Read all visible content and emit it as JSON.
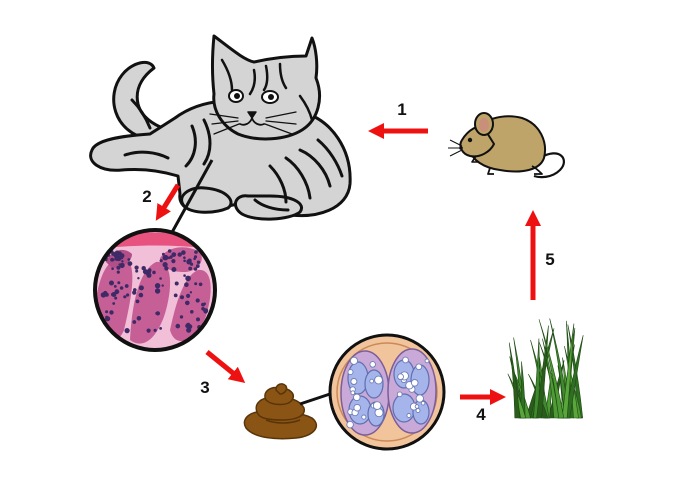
{
  "steps": [
    {
      "label": "1"
    },
    {
      "label": "2"
    },
    {
      "label": "3"
    },
    {
      "label": "4"
    },
    {
      "label": "5"
    }
  ],
  "nodes": {
    "cat": {
      "icon": "cat-icon"
    },
    "mouse": {
      "icon": "mouse-icon"
    },
    "intestine": {
      "icon": "intestinal-tissue-magnified-icon"
    },
    "feces": {
      "icon": "feces-icon"
    },
    "oocyst": {
      "icon": "oocyst-magnified-icon"
    },
    "grass": {
      "icon": "grass-icon"
    }
  },
  "colors": {
    "arrow": "#ee1111",
    "cat_fur": "#d4d4d4",
    "mouse_fur": "#bfa46a",
    "tissue": "#c75f97",
    "nuclei": "#3d2a66",
    "feces": "#8a5414",
    "oocyst_bg": "#f2c49b",
    "sporocyst": "#b3bde6",
    "grass": "#3f8a2e"
  }
}
